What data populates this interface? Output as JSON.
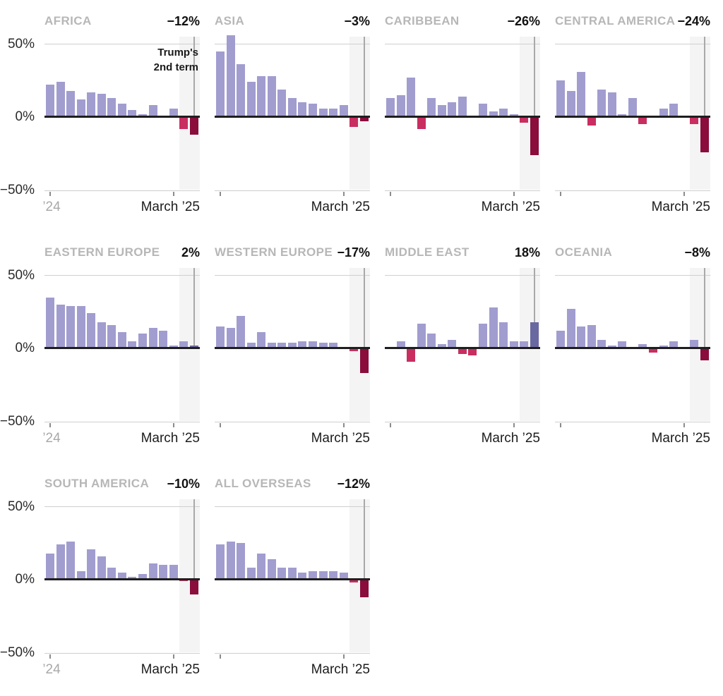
{
  "axis": {
    "y_ticks": [
      "50%",
      "0%",
      "−50%"
    ],
    "x_start": "’24",
    "x_end": "March ’25"
  },
  "colors": {
    "positive": "#a19dcf",
    "negative": "#c92e60",
    "term_positive": "#6a68a0",
    "term_negative": "#8a0d3c",
    "highlight_band": "#f4f4f4",
    "zero_line": "#1e1e1e",
    "gridline": "#cfcfcf"
  },
  "chart_data": {
    "type": "bar",
    "unit": "percent change, year over year",
    "x": [
      "Jan ’24",
      "Feb ’24",
      "Mar ’24",
      "Apr ’24",
      "May ’24",
      "Jun ’24",
      "Jul ’24",
      "Aug ’24",
      "Sep ’24",
      "Oct ’24",
      "Nov ’24",
      "Dec ’24",
      "Jan ’25",
      "Feb ’25",
      "Mar ’25"
    ],
    "ylim": [
      -55,
      55
    ],
    "y_gridlines": [
      50,
      0,
      -50
    ],
    "highlight": {
      "label_line1": "Trump's",
      "label_line2": "2nd term",
      "covers": [
        "Feb ’25",
        "Mar ’25"
      ]
    },
    "panels": [
      {
        "region": "AFRICA",
        "change_label": "−12%",
        "values": [
          22,
          24,
          18,
          12,
          17,
          16,
          13,
          9,
          5,
          2,
          8,
          0,
          6,
          -8,
          -12
        ]
      },
      {
        "region": "ASIA",
        "change_label": "−3%",
        "values": [
          45,
          56,
          36,
          24,
          28,
          28,
          19,
          13,
          10,
          9,
          6,
          6,
          8,
          -7,
          -3
        ]
      },
      {
        "region": "CARIBBEAN",
        "change_label": "−26%",
        "values": [
          13,
          15,
          27,
          -8,
          13,
          8,
          10,
          14,
          0,
          9,
          4,
          6,
          2,
          -4,
          -26
        ]
      },
      {
        "region": "CENTRAL AMERICA",
        "change_label": "−24%",
        "values": [
          25,
          18,
          31,
          -6,
          19,
          17,
          2,
          13,
          -5,
          0,
          6,
          9,
          0,
          -5,
          -24
        ]
      },
      {
        "region": "EASTERN EUROPE",
        "change_label": "2%",
        "values": [
          35,
          30,
          29,
          29,
          24,
          18,
          16,
          11,
          5,
          10,
          14,
          12,
          2,
          5,
          2
        ]
      },
      {
        "region": "WESTERN EUROPE",
        "change_label": "−17%",
        "values": [
          15,
          14,
          22,
          4,
          11,
          4,
          4,
          4,
          5,
          5,
          4,
          4,
          1,
          -2,
          -17
        ]
      },
      {
        "region": "MIDDLE EAST",
        "change_label": "18%",
        "values": [
          1,
          5,
          -9,
          17,
          10,
          3,
          6,
          -4,
          -5,
          17,
          28,
          18,
          5,
          5,
          18
        ]
      },
      {
        "region": "OCEANIA",
        "change_label": "−8%",
        "values": [
          12,
          27,
          15,
          16,
          6,
          2,
          5,
          1,
          3,
          -3,
          2,
          5,
          1,
          6,
          -8
        ]
      },
      {
        "region": "SOUTH AMERICA",
        "change_label": "−10%",
        "values": [
          18,
          24,
          26,
          6,
          21,
          16,
          8,
          5,
          2,
          4,
          11,
          10,
          10,
          -1,
          -10
        ]
      },
      {
        "region": "ALL OVERSEAS",
        "change_label": "−12%",
        "values": [
          24,
          26,
          25,
          8,
          18,
          14,
          8,
          8,
          5,
          6,
          6,
          6,
          5,
          -2,
          -12
        ]
      }
    ]
  }
}
